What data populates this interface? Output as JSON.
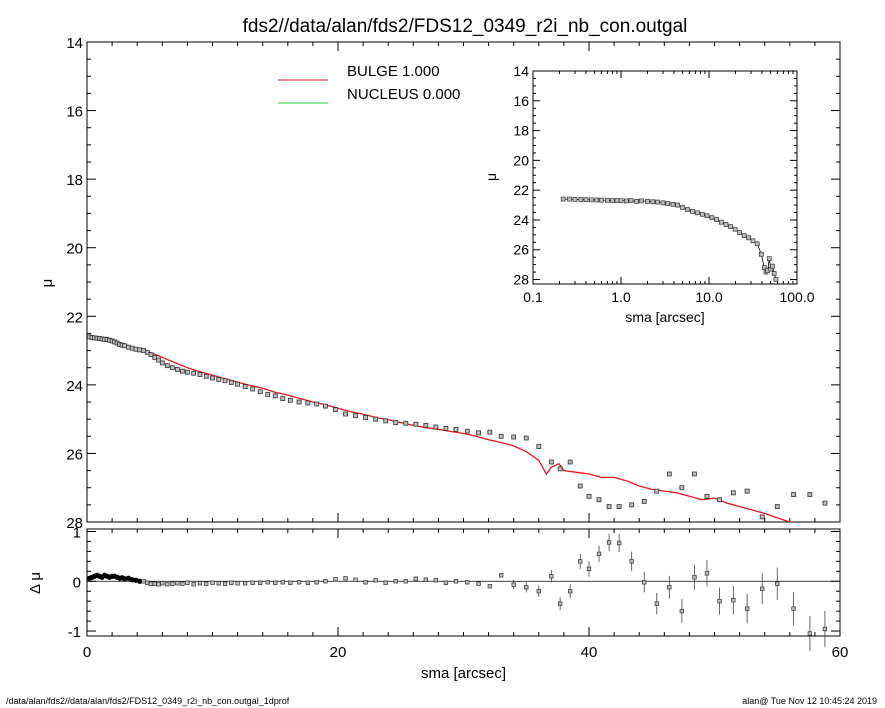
{
  "title": "fds2//data/alan/fds2/FDS12_0349_r2i_nb_con.outgal",
  "footer_left": "/data/alan/fds2//data/alan/fds2/FDS12_0349_r2i_nb_con.outgal_1dprof",
  "footer_right": "alan@  Tue Nov 12 10:45:24 2019",
  "colors": {
    "bulge": "#e8141b",
    "nucleus": "#22d43a",
    "data": "#000000",
    "marker_fill": "#bdbdbd"
  },
  "chart_data": [
    {
      "type": "scatter",
      "panel": "main",
      "xlabel": "sma [arcsec]",
      "ylabel": "μ",
      "xlim": [
        0,
        60
      ],
      "ylim": [
        28,
        14
      ],
      "yticks": [
        "14",
        "16",
        "18",
        "20",
        "22",
        "24",
        "26",
        "28"
      ],
      "xticks": [
        "0",
        "20",
        "40",
        "60"
      ],
      "legend": [
        {
          "label": "BULGE  1.000",
          "color": "#e8141b"
        },
        {
          "label": "NUCLEUS  0.000",
          "color": "#22d43a"
        }
      ],
      "series": [
        {
          "name": "BULGE  1.000",
          "kind": "line",
          "x": [
            0.2,
            1,
            2,
            3,
            4,
            5,
            6,
            7,
            8,
            9,
            10,
            11,
            12,
            13,
            14,
            15,
            16,
            17,
            18,
            19,
            20,
            21,
            22,
            23,
            24,
            25,
            26,
            27,
            28,
            29,
            30,
            31,
            32,
            33,
            34,
            35,
            36,
            36.6,
            37,
            37.6,
            38,
            39,
            40,
            41,
            42,
            43,
            44,
            45,
            46,
            47,
            48,
            49,
            50,
            51,
            52,
            53,
            54,
            55,
            56,
            56.5
          ],
          "y": [
            22.65,
            22.7,
            22.75,
            22.82,
            22.95,
            23.05,
            23.2,
            23.35,
            23.5,
            23.62,
            23.72,
            23.82,
            23.92,
            24.02,
            24.1,
            24.22,
            24.3,
            24.4,
            24.5,
            24.58,
            24.68,
            24.78,
            24.86,
            24.95,
            25.02,
            25.1,
            25.18,
            25.25,
            25.3,
            25.36,
            25.42,
            25.5,
            25.6,
            25.68,
            25.78,
            25.95,
            26.2,
            26.6,
            26.4,
            26.3,
            26.5,
            26.55,
            26.6,
            26.7,
            26.7,
            26.8,
            26.95,
            27.05,
            27.1,
            27.15,
            27.25,
            27.35,
            27.3,
            27.45,
            27.55,
            27.65,
            27.75,
            27.88,
            28.0,
            28.05
          ]
        },
        {
          "name": "data",
          "kind": "points",
          "x": [
            0.2,
            0.4,
            0.6,
            0.8,
            1.0,
            1.2,
            1.4,
            1.6,
            1.8,
            2.0,
            2.2,
            2.4,
            2.6,
            2.8,
            3.0,
            3.3,
            3.6,
            3.9,
            4.2,
            4.5,
            4.8,
            5.1,
            5.4,
            5.7,
            6.0,
            6.4,
            6.8,
            7.2,
            7.6,
            8.0,
            8.5,
            9.0,
            9.5,
            10.0,
            10.5,
            11.0,
            11.5,
            12.0,
            12.6,
            13.2,
            13.8,
            14.4,
            15.0,
            15.6,
            16.2,
            16.9,
            17.6,
            18.3,
            19.0,
            19.8,
            20.6,
            21.4,
            22.2,
            23.0,
            23.8,
            24.6,
            25.4,
            26.2,
            27.0,
            27.8,
            28.6,
            29.4,
            30.3,
            31.2,
            32.1,
            33.0,
            34.0,
            35.0,
            36.0,
            37.0,
            37.7,
            38.5,
            39.3,
            40.0,
            40.8,
            41.6,
            42.4,
            43.4,
            44.4,
            45.4,
            46.4,
            47.4,
            48.4,
            49.4,
            50.4,
            51.5,
            52.6,
            53.8,
            55.0,
            56.3,
            57.6,
            58.8
          ],
          "y": [
            22.6,
            22.62,
            22.63,
            22.64,
            22.65,
            22.66,
            22.67,
            22.68,
            22.7,
            22.72,
            22.75,
            22.78,
            22.82,
            22.84,
            22.86,
            22.9,
            22.93,
            22.96,
            22.98,
            23.0,
            23.05,
            23.12,
            23.2,
            23.28,
            23.36,
            23.44,
            23.5,
            23.55,
            23.6,
            23.63,
            23.66,
            23.7,
            23.75,
            23.8,
            23.84,
            23.88,
            23.93,
            23.98,
            24.05,
            24.12,
            24.2,
            24.28,
            24.32,
            24.4,
            24.45,
            24.5,
            24.53,
            24.56,
            24.62,
            24.72,
            24.85,
            24.9,
            24.95,
            25.0,
            25.05,
            25.1,
            25.12,
            25.15,
            25.18,
            25.23,
            25.27,
            25.3,
            25.35,
            25.4,
            25.38,
            25.5,
            25.52,
            25.55,
            25.8,
            26.25,
            26.45,
            26.25,
            26.95,
            27.25,
            27.35,
            27.55,
            27.55,
            27.5,
            27.4,
            27.1,
            26.6,
            27.0,
            26.6,
            27.25,
            27.35,
            27.15,
            27.1,
            27.85,
            27.55,
            27.2,
            27.2,
            27.45
          ]
        }
      ]
    },
    {
      "type": "scatter",
      "panel": "residual",
      "ylabel": "Δ μ",
      "xlabel": "sma [arcsec]",
      "xlim": [
        0,
        60
      ],
      "ylim": [
        -1.1,
        1.05
      ],
      "yticks": [
        "1",
        "0",
        "-1"
      ],
      "xticks": [
        "0",
        "20",
        "40",
        "60"
      ],
      "series": [
        {
          "name": "residual",
          "x": [
            0.2,
            0.4,
            0.6,
            0.8,
            1.0,
            1.2,
            1.4,
            1.6,
            1.8,
            2.0,
            2.2,
            2.4,
            2.6,
            2.8,
            3.0,
            3.3,
            3.6,
            3.9,
            4.2,
            4.5,
            4.8,
            5.1,
            5.4,
            5.7,
            6.0,
            6.4,
            6.8,
            7.2,
            7.6,
            8.0,
            8.5,
            9.0,
            9.5,
            10.0,
            10.5,
            11.0,
            11.5,
            12.0,
            12.6,
            13.2,
            13.8,
            14.4,
            15.0,
            15.6,
            16.2,
            16.9,
            17.6,
            18.3,
            19.0,
            19.8,
            20.6,
            21.4,
            22.2,
            23.0,
            23.8,
            24.6,
            25.4,
            26.2,
            27.0,
            27.8,
            28.6,
            29.4,
            30.3,
            31.2,
            32.1,
            33.0,
            34.0,
            35.0,
            36.0,
            37.0,
            37.7,
            38.5,
            39.3,
            40.0,
            40.8,
            41.6,
            42.4,
            43.4,
            44.4,
            45.4,
            46.4,
            47.4,
            48.4,
            49.4,
            50.4,
            51.5,
            52.6,
            53.8,
            55.0,
            56.3,
            57.6,
            58.8
          ],
          "y": [
            0.06,
            0.08,
            0.1,
            0.12,
            0.1,
            0.08,
            0.12,
            0.1,
            0.08,
            0.1,
            0.1,
            0.08,
            0.06,
            0.07,
            0.05,
            0.06,
            0.03,
            0.02,
            0.0,
            0.0,
            -0.03,
            -0.05,
            -0.05,
            -0.06,
            -0.04,
            -0.06,
            -0.05,
            -0.04,
            -0.05,
            -0.03,
            -0.06,
            -0.04,
            -0.05,
            -0.03,
            -0.04,
            -0.05,
            -0.03,
            -0.04,
            -0.04,
            -0.03,
            -0.03,
            -0.02,
            -0.03,
            -0.02,
            -0.03,
            -0.02,
            -0.03,
            -0.02,
            0.0,
            0.04,
            0.06,
            0.03,
            -0.02,
            0.02,
            -0.03,
            0.0,
            0.0,
            0.05,
            0.03,
            0.02,
            -0.03,
            0.0,
            -0.02,
            -0.05,
            -0.1,
            0.12,
            -0.07,
            -0.12,
            -0.2,
            0.1,
            -0.45,
            -0.2,
            0.4,
            0.25,
            0.55,
            0.78,
            0.77,
            0.4,
            -0.02,
            -0.45,
            -0.12,
            -0.6,
            0.08,
            0.16,
            -0.4,
            -0.38,
            -0.55,
            -0.15,
            -0.05,
            -0.55,
            -1.05,
            -0.96
          ]
        }
      ]
    },
    {
      "type": "scatter",
      "panel": "inset",
      "xlabel": "sma [arcsec]",
      "ylabel": "μ",
      "xscale": "log",
      "xlim": [
        0.1,
        100
      ],
      "ylim": [
        28.3,
        14
      ],
      "xticks": [
        "0.1",
        "1.0",
        "10.0",
        "100.0"
      ],
      "yticks": [
        "14",
        "16",
        "18",
        "20",
        "22",
        "24",
        "26",
        "28"
      ],
      "series": [
        {
          "name": "data",
          "x": [
            0.22,
            0.26,
            0.3,
            0.35,
            0.4,
            0.46,
            0.53,
            0.6,
            0.7,
            0.8,
            0.9,
            1.0,
            1.15,
            1.3,
            1.5,
            1.7,
            2.0,
            2.3,
            2.6,
            3.0,
            3.4,
            3.9,
            4.4,
            5.0,
            5.7,
            6.5,
            7.4,
            8.4,
            9.5,
            10.8,
            12.2,
            13.8,
            15.6,
            17.6,
            19.8,
            22.3,
            25.1,
            28.2,
            31.6,
            35.3,
            39.3,
            42.4,
            44.4,
            46.4,
            48.4,
            50.4,
            52.6,
            55.0,
            57.6
          ],
          "y": [
            22.6,
            22.6,
            22.62,
            22.63,
            22.64,
            22.65,
            22.66,
            22.67,
            22.68,
            22.7,
            22.7,
            22.7,
            22.72,
            22.7,
            22.75,
            22.72,
            22.75,
            22.78,
            22.8,
            22.85,
            22.9,
            22.95,
            23.0,
            23.15,
            23.3,
            23.42,
            23.52,
            23.62,
            23.72,
            23.85,
            23.98,
            24.15,
            24.3,
            24.45,
            24.62,
            24.85,
            25.05,
            25.2,
            25.4,
            25.6,
            26.3,
            27.2,
            27.5,
            27.4,
            26.6,
            27.3,
            27.1,
            27.6,
            28.0
          ]
        }
      ]
    }
  ]
}
